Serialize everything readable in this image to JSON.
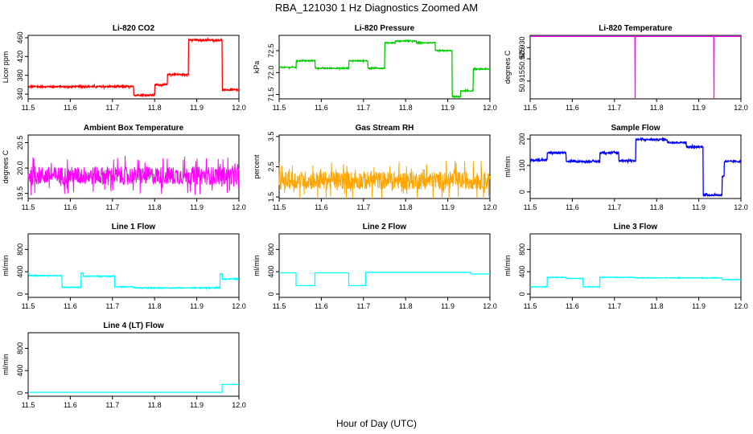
{
  "title": "RBA_121030  1 Hz Diagnostics Zoomed AM",
  "xlabel": "Hour of Day (UTC)",
  "chart_data": [
    {
      "type": "line",
      "title": "Li-820 CO2",
      "ylabel": "Licor ppm",
      "color": "#ff0000",
      "xlim": [
        11.5,
        12.0
      ],
      "ylim": [
        330,
        465
      ],
      "xticks": [
        "11.5",
        "11.6",
        "11.7",
        "11.8",
        "11.9",
        "12.0"
      ],
      "yticks": [
        "340",
        "380",
        "420",
        "460"
      ],
      "noise": 1.5,
      "x": [
        11.5,
        11.75,
        11.75,
        11.8,
        11.8,
        11.83,
        11.83,
        11.88,
        11.88,
        11.96,
        11.96,
        12.0
      ],
      "y": [
        356,
        356,
        338,
        338,
        360,
        360,
        382,
        382,
        455,
        455,
        349,
        349
      ]
    },
    {
      "type": "line",
      "title": "Li-820 Pressure",
      "ylabel": "kPa",
      "color": "#00cc00",
      "xlim": [
        11.5,
        12.0
      ],
      "ylim": [
        71.4,
        72.85
      ],
      "xticks": [
        "11.5",
        "11.6",
        "11.7",
        "11.8",
        "11.9",
        "12.0"
      ],
      "yticks": [
        "71.5",
        "72.0",
        "72.5"
      ],
      "noise": 0.01,
      "x": [
        11.5,
        11.54,
        11.54,
        11.585,
        11.585,
        11.665,
        11.665,
        11.71,
        11.71,
        11.75,
        11.75,
        11.775,
        11.775,
        11.825,
        11.825,
        11.87,
        11.87,
        11.91,
        11.91,
        11.93,
        11.93,
        11.96,
        11.96,
        12.0
      ],
      "y": [
        72.12,
        72.12,
        72.27,
        72.27,
        72.1,
        72.1,
        72.27,
        72.27,
        72.1,
        72.1,
        72.68,
        72.68,
        72.72,
        72.72,
        72.68,
        72.68,
        72.5,
        72.5,
        71.45,
        71.45,
        71.58,
        71.58,
        72.08,
        72.08
      ]
    },
    {
      "type": "line",
      "title": "Li-820 Temperature",
      "ylabel": "degrees C",
      "color": "#ff00ff",
      "xlim": [
        11.5,
        12.0
      ],
      "ylim": [
        50.907,
        50.9355
      ],
      "xticks": [
        "11.5",
        "11.6",
        "11.7",
        "11.8",
        "11.9",
        "12.0"
      ],
      "yticks": [
        "50.915",
        "50.925",
        "50.930"
      ],
      "noise": 0,
      "x": [
        11.5,
        11.7485,
        11.749,
        11.7495,
        11.9355,
        11.936,
        11.9365,
        12.0
      ],
      "y": [
        50.935,
        50.935,
        50.907,
        50.935,
        50.935,
        50.907,
        50.935,
        50.935
      ]
    },
    {
      "type": "line",
      "title": "Ambient Box Temperature",
      "ylabel": "degrees C",
      "color": "#ff00ff",
      "xlim": [
        11.5,
        12.0
      ],
      "ylim": [
        19.4,
        20.65
      ],
      "xticks": [
        "11.5",
        "11.6",
        "11.7",
        "11.8",
        "11.9",
        "12.0"
      ],
      "yticks": [
        "19.5",
        "20.0",
        "20.5"
      ],
      "noise": 0.18,
      "x": [
        11.5,
        12.0
      ],
      "y": [
        19.85,
        19.85
      ]
    },
    {
      "type": "line",
      "title": "Gas Stream RH",
      "ylabel": "percent",
      "color": "#ffa500",
      "xlim": [
        11.5,
        12.0
      ],
      "ylim": [
        1.45,
        3.55
      ],
      "xticks": [
        "11.5",
        "11.6",
        "11.7",
        "11.8",
        "11.9",
        "12.0"
      ],
      "yticks": [
        "1.5",
        "2.5",
        "3.5"
      ],
      "noise": 0.3,
      "x": [
        11.5,
        12.0
      ],
      "y": [
        2.05,
        2.05
      ]
    },
    {
      "type": "line",
      "title": "Sample Flow",
      "ylabel": "ml/min",
      "color": "#0000ff",
      "xlim": [
        11.5,
        12.0
      ],
      "ylim": [
        -25,
        215
      ],
      "xticks": [
        "11.5",
        "11.6",
        "11.7",
        "11.8",
        "11.9",
        "12.0"
      ],
      "yticks": [
        "0",
        "100",
        "200"
      ],
      "noise": 3,
      "x": [
        11.5,
        11.54,
        11.54,
        11.585,
        11.585,
        11.665,
        11.665,
        11.71,
        11.71,
        11.75,
        11.75,
        11.825,
        11.825,
        11.87,
        11.87,
        11.91,
        11.91,
        11.955,
        11.955,
        11.96,
        11.96,
        12.0
      ],
      "y": [
        120,
        120,
        148,
        148,
        115,
        115,
        148,
        148,
        118,
        118,
        198,
        198,
        187,
        187,
        170,
        170,
        -12,
        -12,
        60,
        60,
        115,
        115
      ]
    },
    {
      "type": "line",
      "title": "Line 1 Flow",
      "ylabel": "ml/min",
      "color": "#00ffff",
      "xlim": [
        11.5,
        12.0
      ],
      "ylim": [
        -60,
        1080
      ],
      "xticks": [
        "11.5",
        "11.6",
        "11.7",
        "11.8",
        "11.9",
        "12.0"
      ],
      "yticks": [
        "0",
        "400",
        "800"
      ],
      "noise": 6,
      "x": [
        11.5,
        11.502,
        11.502,
        11.58,
        11.58,
        11.625,
        11.625,
        11.63,
        11.63,
        11.705,
        11.705,
        11.75,
        11.75,
        11.955,
        11.955,
        11.96,
        11.96,
        12.0
      ],
      "y": [
        380,
        380,
        330,
        330,
        120,
        120,
        380,
        380,
        320,
        320,
        130,
        130,
        110,
        110,
        360,
        360,
        270,
        270
      ]
    },
    {
      "type": "line",
      "title": "Line 2 Flow",
      "ylabel": "ml/min",
      "color": "#00ffff",
      "xlim": [
        11.5,
        12.0
      ],
      "ylim": [
        -60,
        1080
      ],
      "xticks": [
        "11.5",
        "11.6",
        "11.7",
        "11.8",
        "11.9",
        "12.0"
      ],
      "yticks": [
        "0",
        "400",
        "800"
      ],
      "noise": 0,
      "x": [
        11.5,
        11.54,
        11.54,
        11.585,
        11.585,
        11.665,
        11.665,
        11.705,
        11.705,
        11.955,
        11.955,
        12.0
      ],
      "y": [
        380,
        380,
        150,
        150,
        380,
        380,
        150,
        150,
        390,
        390,
        360,
        360
      ]
    },
    {
      "type": "line",
      "title": "Line 3 Flow",
      "ylabel": "ml/min",
      "color": "#00ffff",
      "xlim": [
        11.5,
        12.0
      ],
      "ylim": [
        -60,
        1080
      ],
      "xticks": [
        "11.5",
        "11.6",
        "11.7",
        "11.8",
        "11.9",
        "12.0"
      ],
      "yticks": [
        "0",
        "400",
        "800"
      ],
      "noise": 4,
      "x": [
        11.5,
        11.54,
        11.54,
        11.585,
        11.585,
        11.625,
        11.625,
        11.665,
        11.665,
        11.75,
        11.75,
        11.955,
        11.955,
        12.0
      ],
      "y": [
        130,
        130,
        300,
        300,
        280,
        280,
        130,
        130,
        300,
        300,
        290,
        290,
        260,
        260
      ]
    },
    {
      "type": "line",
      "title": "Line 4 (LT) Flow",
      "ylabel": "ml/min",
      "color": "#00ffff",
      "xlim": [
        11.5,
        12.0
      ],
      "ylim": [
        -60,
        1080
      ],
      "xticks": [
        "11.5",
        "11.6",
        "11.7",
        "11.8",
        "11.9",
        "12.0"
      ],
      "yticks": [
        "0",
        "400",
        "800"
      ],
      "noise": 0,
      "x": [
        11.5,
        11.96,
        11.96,
        12.0
      ],
      "y": [
        10,
        10,
        150,
        150
      ]
    }
  ]
}
